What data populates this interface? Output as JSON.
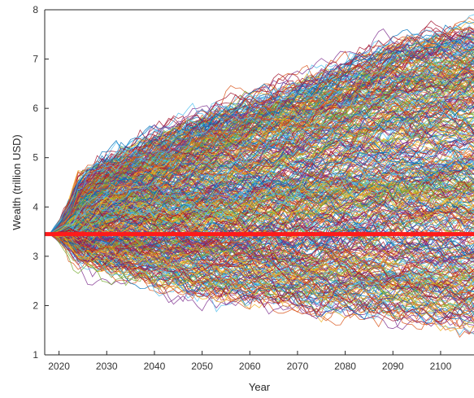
{
  "chart_data": {
    "type": "line",
    "title": "",
    "xlabel": "Year",
    "ylabel": "Wealth (trillion USD)",
    "xlim": [
      2017,
      2107
    ],
    "ylim": [
      1,
      8
    ],
    "xticks": [
      2020,
      2030,
      2040,
      2050,
      2060,
      2070,
      2080,
      2090,
      2100
    ],
    "yticks": [
      1,
      2,
      3,
      4,
      5,
      6,
      7,
      8
    ],
    "grid": false,
    "legend": "none",
    "simulation_paths": {
      "description_count": 500,
      "start_value": 3.45,
      "envelope": {
        "x": [
          2018,
          2030,
          2050,
          2070,
          2090,
          2107
        ],
        "upper": [
          3.9,
          4.9,
          5.8,
          6.5,
          7.3,
          7.6
        ],
        "lower": [
          3.2,
          2.8,
          2.3,
          2.0,
          1.75,
          1.55
        ]
      },
      "colors": [
        "#0072BD",
        "#D95319",
        "#EDB120",
        "#7E2F8E",
        "#77AC30",
        "#4DBEEE",
        "#A2142F"
      ]
    },
    "series": [
      {
        "style": "thick-red",
        "color": "#ff1a1a",
        "x": [
          2017,
          2107
        ],
        "y": [
          3.45,
          3.45
        ]
      }
    ]
  }
}
